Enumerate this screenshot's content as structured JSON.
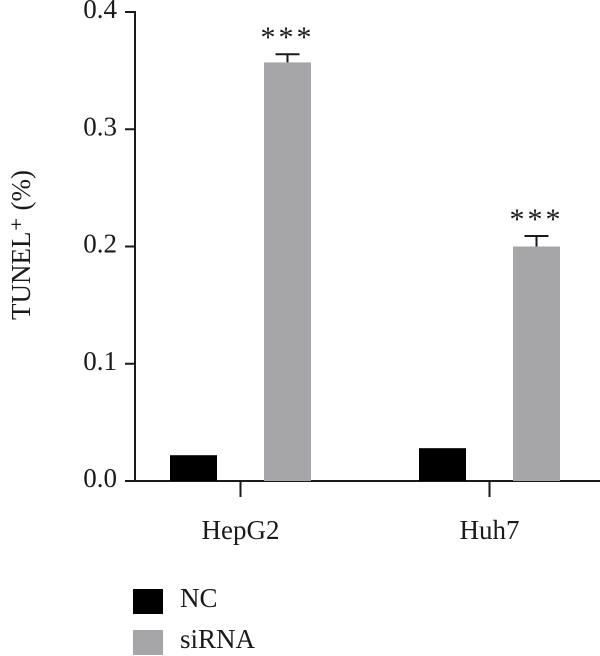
{
  "chart_data": {
    "type": "bar",
    "ylabel": "TUNEL⁺ (%)",
    "categories": [
      "HepG2",
      "Huh7"
    ],
    "series": [
      {
        "name": "NC",
        "color": "#000000",
        "values": [
          0.022,
          0.028
        ]
      },
      {
        "name": "siRNA",
        "color": "#a6a6a8",
        "values": [
          0.357,
          0.2
        ],
        "errors": [
          0.007,
          0.009
        ],
        "significance": [
          "***",
          "***"
        ]
      }
    ],
    "ylim": [
      0,
      0.4
    ],
    "yticks": [
      {
        "value": 0,
        "label": "0.0"
      },
      0.1,
      0.2,
      0.3,
      0.4
    ],
    "legend": "bottom-left"
  }
}
